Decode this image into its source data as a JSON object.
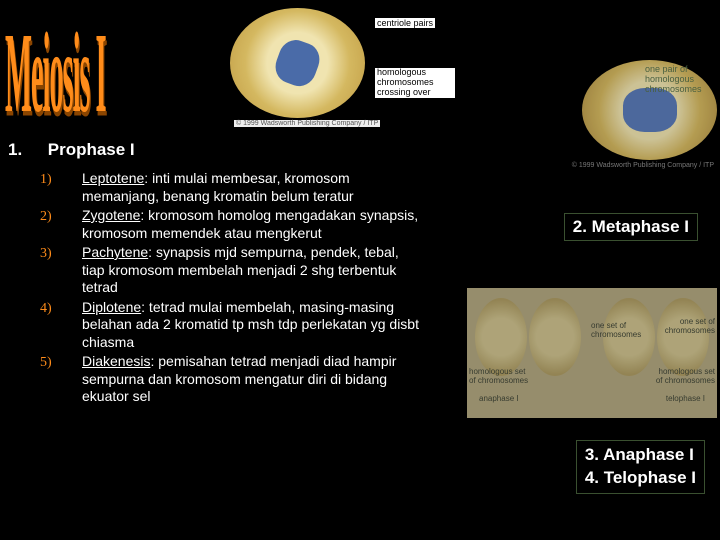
{
  "title": "Meiosis I",
  "heading1": {
    "num": "1.",
    "text": "Prophase I"
  },
  "diagram_labels": {
    "centriole": "centriole pairs",
    "homolog_cross": "homologous chromosomes crossing over",
    "caption1": "© 1999 Wadsworth Publishing Company / ITP",
    "pair": "one pair of homologous chromosomes",
    "caption2": "© 1999 Wadsworth Publishing Company / ITP",
    "one_set": "one set of chromosomes",
    "homolog_set": "homologous set of chromosomes",
    "one_set2": "one set of chromosomes",
    "homolog_set2": "homologous set of chromosomes",
    "anaphase": "anaphase I",
    "telophase": "telophase I"
  },
  "stages": [
    {
      "num": "1)",
      "name": "Leptotene",
      "desc": ": inti mulai membesar, kromosom memanjang, benang kromatin belum teratur"
    },
    {
      "num": "2)",
      "name": "Zygotene",
      "desc": ": kromosom homolog mengadakan synapsis, kromosom memendek atau mengkerut"
    },
    {
      "num": "3)",
      "name": "Pachytene",
      "desc": ": synapsis mjd sempurna, pendek, tebal, tiap kromosom membelah menjadi 2 shg terbentuk tetrad"
    },
    {
      "num": "4)",
      "name": "Diplotene",
      "desc": ": tetrad mulai membelah, masing-masing belahan ada 2 kromatid tp  msh tdp perlekatan yg disbt chiasma"
    },
    {
      "num": "5)",
      "name": "Diakenesis",
      "desc": ": pemisahan tetrad menjadi diad hampir sempurna dan kromosom mengatur diri di bidang ekuator sel"
    }
  ],
  "phase2": "2.  Metaphase I",
  "phase3": "3.  Anaphase I",
  "phase4": "4.  Telophase I",
  "colors": {
    "background": "#000000",
    "title_color": "#ff8c1a",
    "text_color": "#ffffff",
    "list_num_color": "#ff8c1a"
  }
}
